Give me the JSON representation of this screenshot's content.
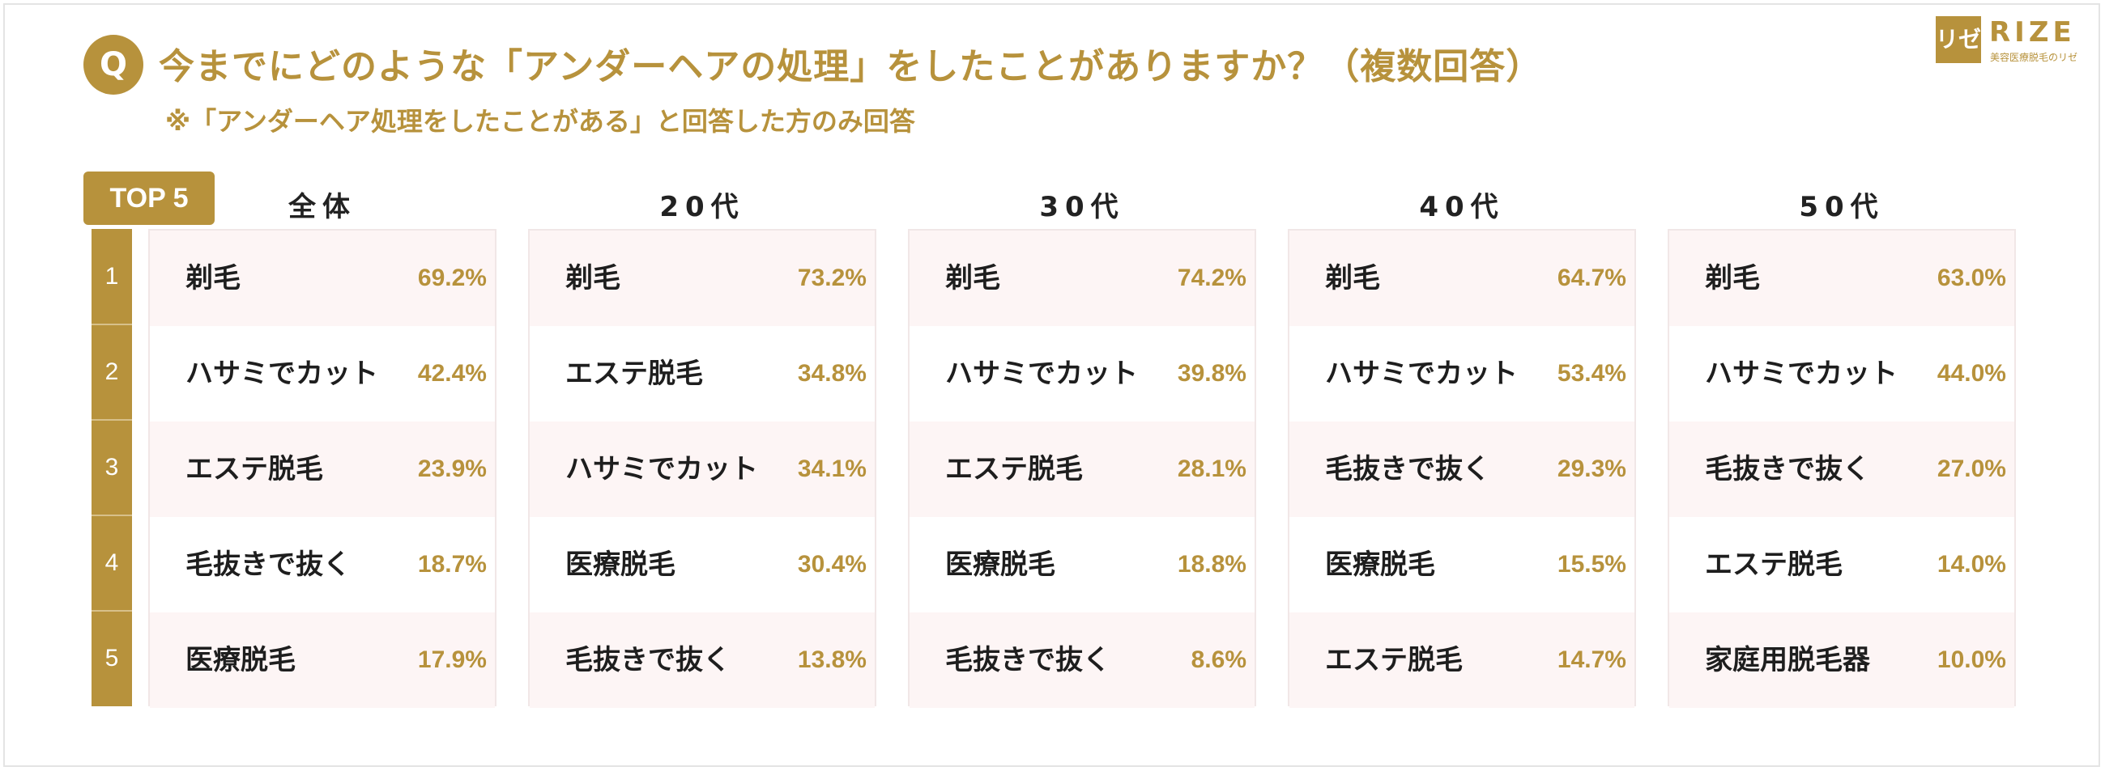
{
  "header": {
    "q_badge": "Q",
    "title": "今までにどのような「アンダーヘアの処理」をしたことがありますか？（複数回答）",
    "subtitle": "※「アンダーヘア処理をしたことがある」と回答した方のみ回答"
  },
  "logo": {
    "mark": "リゼ",
    "name": "RIZE",
    "tagline": "美容医療脱毛のリゼ"
  },
  "top_label": "TOP 5",
  "ranks": [
    "1",
    "2",
    "3",
    "4",
    "5"
  ],
  "colors": {
    "accent": "#b7923c",
    "row_shade": "#fdf5f5",
    "panel_border": "#f1e7e7"
  },
  "chart_data": {
    "type": "table",
    "columns": [
      {
        "name": "全体",
        "items": [
          {
            "label": "剃毛",
            "value": "69.2%"
          },
          {
            "label": "ハサミでカット",
            "value": "42.4%"
          },
          {
            "label": "エステ脱毛",
            "value": "23.9%"
          },
          {
            "label": "毛抜きで抜く",
            "value": "18.7%"
          },
          {
            "label": "医療脱毛",
            "value": "17.9%"
          }
        ]
      },
      {
        "name": "20代",
        "items": [
          {
            "label": "剃毛",
            "value": "73.2%"
          },
          {
            "label": "エステ脱毛",
            "value": "34.8%"
          },
          {
            "label": "ハサミでカット",
            "value": "34.1%"
          },
          {
            "label": "医療脱毛",
            "value": "30.4%"
          },
          {
            "label": "毛抜きで抜く",
            "value": "13.8%"
          }
        ]
      },
      {
        "name": "30代",
        "items": [
          {
            "label": "剃毛",
            "value": "74.2%"
          },
          {
            "label": "ハサミでカット",
            "value": "39.8%"
          },
          {
            "label": "エステ脱毛",
            "value": "28.1%"
          },
          {
            "label": "医療脱毛",
            "value": "18.8%"
          },
          {
            "label": "毛抜きで抜く",
            "value": "8.6%"
          }
        ]
      },
      {
        "name": "40代",
        "items": [
          {
            "label": "剃毛",
            "value": "64.7%"
          },
          {
            "label": "ハサミでカット",
            "value": "53.4%"
          },
          {
            "label": "毛抜きで抜く",
            "value": "29.3%"
          },
          {
            "label": "医療脱毛",
            "value": "15.5%"
          },
          {
            "label": "エステ脱毛",
            "value": "14.7%"
          }
        ]
      },
      {
        "name": "50代",
        "items": [
          {
            "label": "剃毛",
            "value": "63.0%"
          },
          {
            "label": "ハサミでカット",
            "value": "44.0%"
          },
          {
            "label": "毛抜きで抜く",
            "value": "27.0%"
          },
          {
            "label": "エステ脱毛",
            "value": "14.0%"
          },
          {
            "label": "家庭用脱毛器",
            "value": "10.0%"
          }
        ]
      }
    ]
  }
}
